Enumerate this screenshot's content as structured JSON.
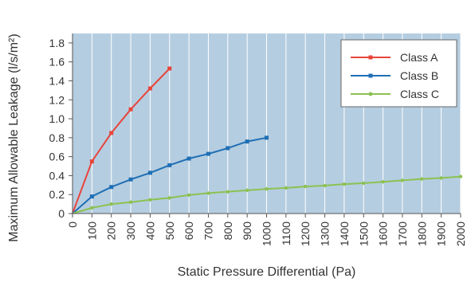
{
  "chart_data": {
    "type": "line",
    "xlabel": "Static Pressure Differential (Pa)",
    "ylabel": "Maximum Allowable Leakage (l/s/m²)",
    "xlim": [
      0,
      2000
    ],
    "ylim": [
      0,
      1.9
    ],
    "x_ticks": [
      "0",
      "100",
      "200",
      "300",
      "400",
      "500",
      "600",
      "700",
      "800",
      "900",
      "1000",
      "1100",
      "1200",
      "1300",
      "1400",
      "1500",
      "1600",
      "1700",
      "1800",
      "1900",
      "2000"
    ],
    "y_ticks": [
      "0",
      "0.2",
      "0.4",
      "0.6",
      "0.8",
      "1.0",
      "1.2",
      "1.4",
      "1.6",
      "1.8"
    ],
    "x_tick_values": [
      0,
      100,
      200,
      300,
      400,
      500,
      600,
      700,
      800,
      900,
      1000,
      1100,
      1200,
      1300,
      1400,
      1500,
      1600,
      1700,
      1800,
      1900,
      2000
    ],
    "y_tick_values": [
      0,
      0.2,
      0.4,
      0.6,
      0.8,
      1.0,
      1.2,
      1.4,
      1.6,
      1.8
    ],
    "grid": "vertical",
    "legend_position": "top-right",
    "background_color": "#b5cde0",
    "series": [
      {
        "name": "Class A",
        "color": "#e8453c",
        "x": [
          0,
          100,
          200,
          300,
          400,
          500
        ],
        "y": [
          0,
          0.55,
          0.85,
          1.1,
          1.32,
          1.53
        ]
      },
      {
        "name": "Class B",
        "color": "#1f6fb5",
        "x": [
          0,
          100,
          200,
          300,
          400,
          500,
          600,
          700,
          800,
          900,
          1000
        ],
        "y": [
          0,
          0.18,
          0.28,
          0.36,
          0.43,
          0.51,
          0.58,
          0.63,
          0.69,
          0.76,
          0.8
        ]
      },
      {
        "name": "Class C",
        "color": "#8cc152",
        "x": [
          0,
          100,
          200,
          300,
          400,
          500,
          600,
          700,
          800,
          900,
          1000,
          1100,
          1200,
          1300,
          1400,
          1500,
          1600,
          1700,
          1800,
          1900,
          2000
        ],
        "y": [
          0,
          0.06,
          0.1,
          0.12,
          0.145,
          0.165,
          0.195,
          0.215,
          0.23,
          0.245,
          0.26,
          0.27,
          0.285,
          0.295,
          0.31,
          0.32,
          0.335,
          0.35,
          0.365,
          0.375,
          0.39
        ]
      }
    ]
  }
}
